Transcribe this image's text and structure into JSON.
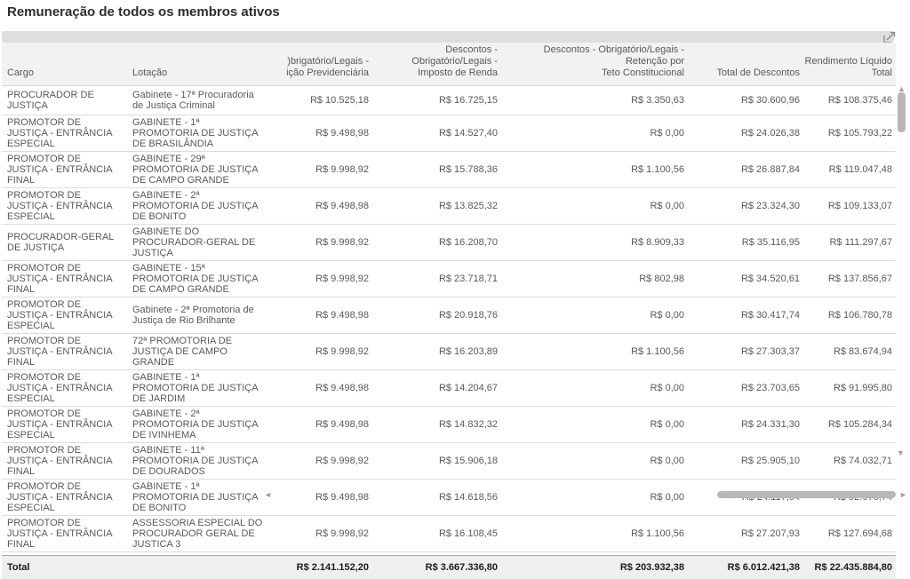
{
  "title": "Remuneração de todos os membros ativos",
  "colors": {
    "header_bg": "#f2f2f2",
    "total_bg": "#efefef",
    "text": "#595959",
    "strip": "#dedede",
    "scroll_thumb": "#b8b8b8"
  },
  "table": {
    "columns": [
      {
        "label": "Cargo"
      },
      {
        "label": "Lotação"
      },
      {
        "label": ")brigatório/Legais -\nição Previdenciária"
      },
      {
        "label": "Descontos - Obrigatório/Legais -\nImposto de Renda"
      },
      {
        "label": "Descontos - Obrigatório/Legais - Retenção por\nTeto Constitucional"
      },
      {
        "label": "Total de Descontos"
      },
      {
        "label": "Rendimento Líquido\nTotal"
      }
    ],
    "rows": [
      {
        "cargo": "PROCURADOR DE JUSTIÇA",
        "lotacao": "Gabinete - 17ª Procuradoria de Justiça Criminal",
        "values": [
          "R$ 10.525,18",
          "R$ 16.725,15",
          "R$ 3.350,63",
          "R$ 30.600,96",
          "R$ 108.375,46"
        ]
      },
      {
        "cargo": "PROMOTOR DE JUSTIÇA - ENTRÂNCIA ESPECIAL",
        "lotacao": "GABINETE - 1ª PROMOTORIA DE JUSTIÇA DE BRASILÂNDIA",
        "values": [
          "R$ 9.498,98",
          "R$ 14.527,40",
          "R$ 0,00",
          "R$ 24.026,38",
          "R$ 105.793,22"
        ]
      },
      {
        "cargo": "PROMOTOR DE JUSTIÇA - ENTRÂNCIA FINAL",
        "lotacao": "GABINETE - 29ª PROMOTORIA DE JUSTIÇA DE CAMPO GRANDE",
        "values": [
          "R$ 9.998,92",
          "R$ 15.788,36",
          "R$ 1.100,56",
          "R$ 26.887,84",
          "R$ 119.047,48"
        ]
      },
      {
        "cargo": "PROMOTOR DE JUSTIÇA - ENTRÂNCIA ESPECIAL",
        "lotacao": "GABINETE - 2ª PROMOTORIA DE JUSTIÇA DE BONITO",
        "values": [
          "R$ 9.498,98",
          "R$ 13.825,32",
          "R$ 0,00",
          "R$ 23.324,30",
          "R$ 109.133,07"
        ]
      },
      {
        "cargo": "PROCURADOR-GERAL DE JUSTIÇA",
        "lotacao": "GABINETE DO PROCURADOR-GERAL DE JUSTIÇA",
        "values": [
          "R$ 9.998,92",
          "R$ 16.208,70",
          "R$ 8.909,33",
          "R$ 35.116,95",
          "R$ 111.297,67"
        ]
      },
      {
        "cargo": "PROMOTOR DE JUSTIÇA - ENTRÂNCIA FINAL",
        "lotacao": "GABINETE - 15ª PROMOTORIA DE JUSTIÇA DE CAMPO GRANDE",
        "values": [
          "R$ 9.998,92",
          "R$ 23.718,71",
          "R$ 802,98",
          "R$ 34.520,61",
          "R$ 137.856,67"
        ]
      },
      {
        "cargo": "PROMOTOR DE JUSTIÇA - ENTRÂNCIA ESPECIAL",
        "lotacao": "Gabinete - 2ª Promotoria de Justiça de Rio Brilhante",
        "values": [
          "R$ 9.498,98",
          "R$ 20.918,76",
          "R$ 0,00",
          "R$ 30.417,74",
          "R$ 106.780,78"
        ]
      },
      {
        "cargo": "PROMOTOR DE JUSTIÇA - ENTRÂNCIA FINAL",
        "lotacao": "72ª PROMOTORIA DE JUSTIÇA DE CAMPO GRANDE",
        "values": [
          "R$ 9.998,92",
          "R$ 16.203,89",
          "R$ 1.100,56",
          "R$ 27.303,37",
          "R$ 83.674,94"
        ]
      },
      {
        "cargo": "PROMOTOR DE JUSTIÇA - ENTRÂNCIA ESPECIAL",
        "lotacao": "GABINETE - 1ª PROMOTORIA DE JUSTIÇA DE JARDIM",
        "values": [
          "R$ 9.498,98",
          "R$ 14.204,67",
          "R$ 0,00",
          "R$ 23.703,65",
          "R$ 91.995,80"
        ]
      },
      {
        "cargo": "PROMOTOR DE JUSTIÇA - ENTRÂNCIA ESPECIAL",
        "lotacao": "GABINETE - 2ª PROMOTORIA DE JUSTIÇA DE IVINHEMA",
        "values": [
          "R$ 9.498,98",
          "R$ 14.832,32",
          "R$ 0,00",
          "R$ 24.331,30",
          "R$ 105.284,34"
        ]
      },
      {
        "cargo": "PROMOTOR DE JUSTIÇA - ENTRÂNCIA FINAL",
        "lotacao": "GABINETE - 11ª PROMOTORIA DE JUSTIÇA DE DOURADOS",
        "values": [
          "R$ 9.998,92",
          "R$ 15.906,18",
          "R$ 0,00",
          "R$ 25.905,10",
          "R$ 74.032,71"
        ]
      },
      {
        "cargo": "PROMOTOR DE JUSTIÇA - ENTRÂNCIA ESPECIAL",
        "lotacao": "GABINETE - 1ª PROMOTORIA DE JUSTIÇA DE BONITO",
        "values": [
          "R$ 9.498,98",
          "R$ 14.618,56",
          "R$ 0,00",
          "R$ 24.117,54",
          "R$ 92.675,74"
        ]
      },
      {
        "cargo": "PROMOTOR DE JUSTIÇA - ENTRÂNCIA FINAL",
        "lotacao": "ASSESSORIA ESPECIAL DO PROCURADOR GERAL DE JUSTICA 3",
        "values": [
          "R$ 9.998,92",
          "R$ 16.108,45",
          "R$ 1.100,56",
          "R$ 27.207,93",
          "R$ 127.694,68"
        ]
      }
    ],
    "total": {
      "label": "Total",
      "values": [
        "R$ 2.141.152,20",
        "R$ 3.667.336,80",
        "R$ 203.932,38",
        "R$ 6.012.421,38",
        "R$ 22.435.884,80"
      ]
    }
  },
  "scroll": {
    "up_arrow": "▲",
    "down_arrow": "▼",
    "left_arrow": "◄",
    "right_arrow": "►"
  }
}
